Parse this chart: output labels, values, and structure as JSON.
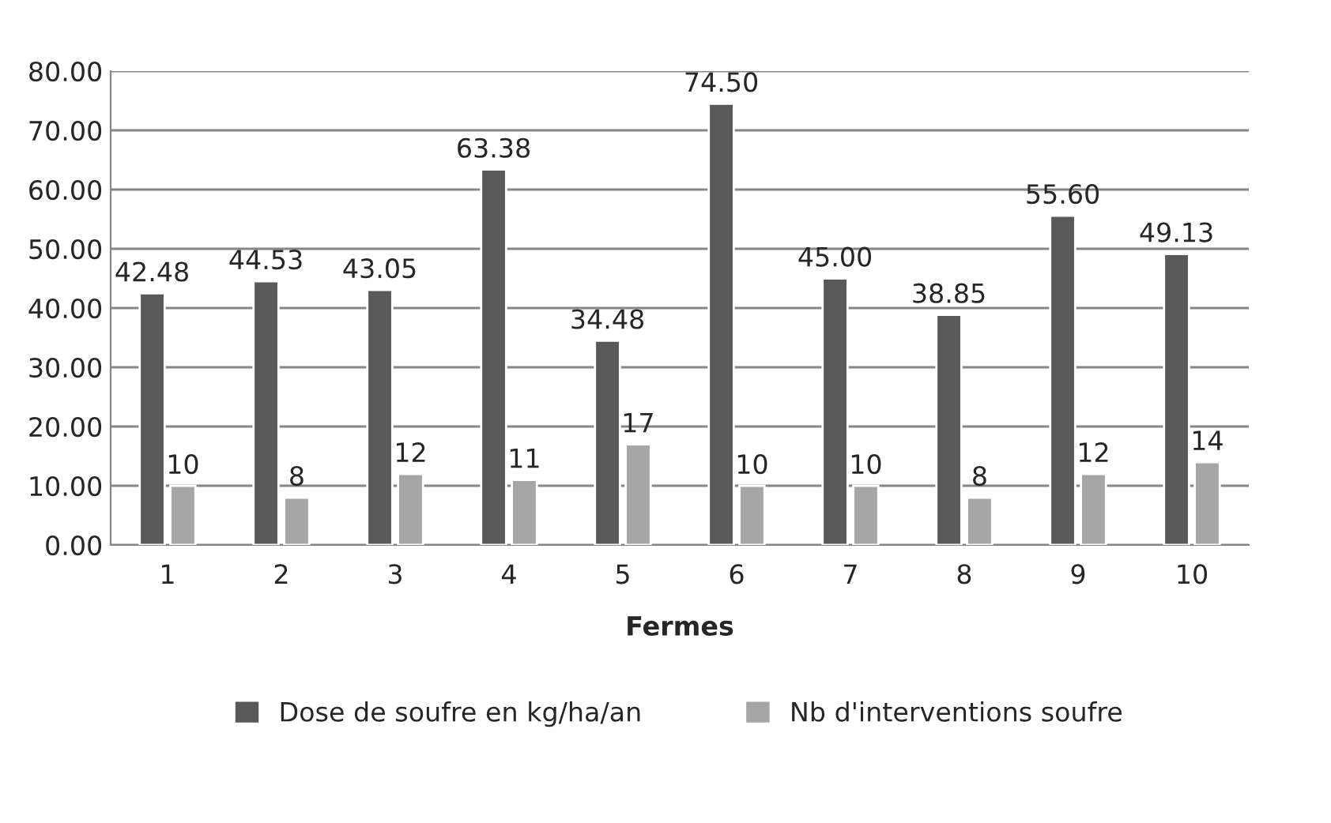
{
  "chart_data": {
    "type": "bar",
    "xlabel": "Fermes",
    "categories": [
      "1",
      "2",
      "3",
      "4",
      "5",
      "6",
      "7",
      "8",
      "9",
      "10"
    ],
    "series": [
      {
        "name": "Dose de soufre en kg/ha/an",
        "color": "#595959",
        "values": [
          42.48,
          44.53,
          43.05,
          63.38,
          34.48,
          74.5,
          45.0,
          38.85,
          55.6,
          49.13
        ],
        "value_labels": [
          "42.48",
          "44.53",
          "43.05",
          "63.38",
          "34.48",
          "74.50",
          "45.00",
          "38.85",
          "55.60",
          "49.13"
        ]
      },
      {
        "name": "Nb d'interventions soufre",
        "color": "#a6a6a6",
        "values": [
          10,
          8,
          12,
          11,
          17,
          10,
          10,
          8,
          12,
          14
        ],
        "value_labels": [
          "10",
          "8",
          "12",
          "11",
          "17",
          "10",
          "10",
          "8",
          "12",
          "14"
        ]
      }
    ],
    "ylim": [
      0,
      80
    ],
    "yticks": [
      {
        "value": 0,
        "label": "0.00"
      },
      {
        "value": 10,
        "label": "10.00"
      },
      {
        "value": 20,
        "label": "20.00"
      },
      {
        "value": 30,
        "label": "30.00"
      },
      {
        "value": 40,
        "label": "40.00"
      },
      {
        "value": 50,
        "label": "50.00"
      },
      {
        "value": 60,
        "label": "60.00"
      },
      {
        "value": 70,
        "label": "70.00"
      },
      {
        "value": 80,
        "label": "80.00"
      }
    ],
    "grid": "y",
    "legend": "bottom"
  }
}
